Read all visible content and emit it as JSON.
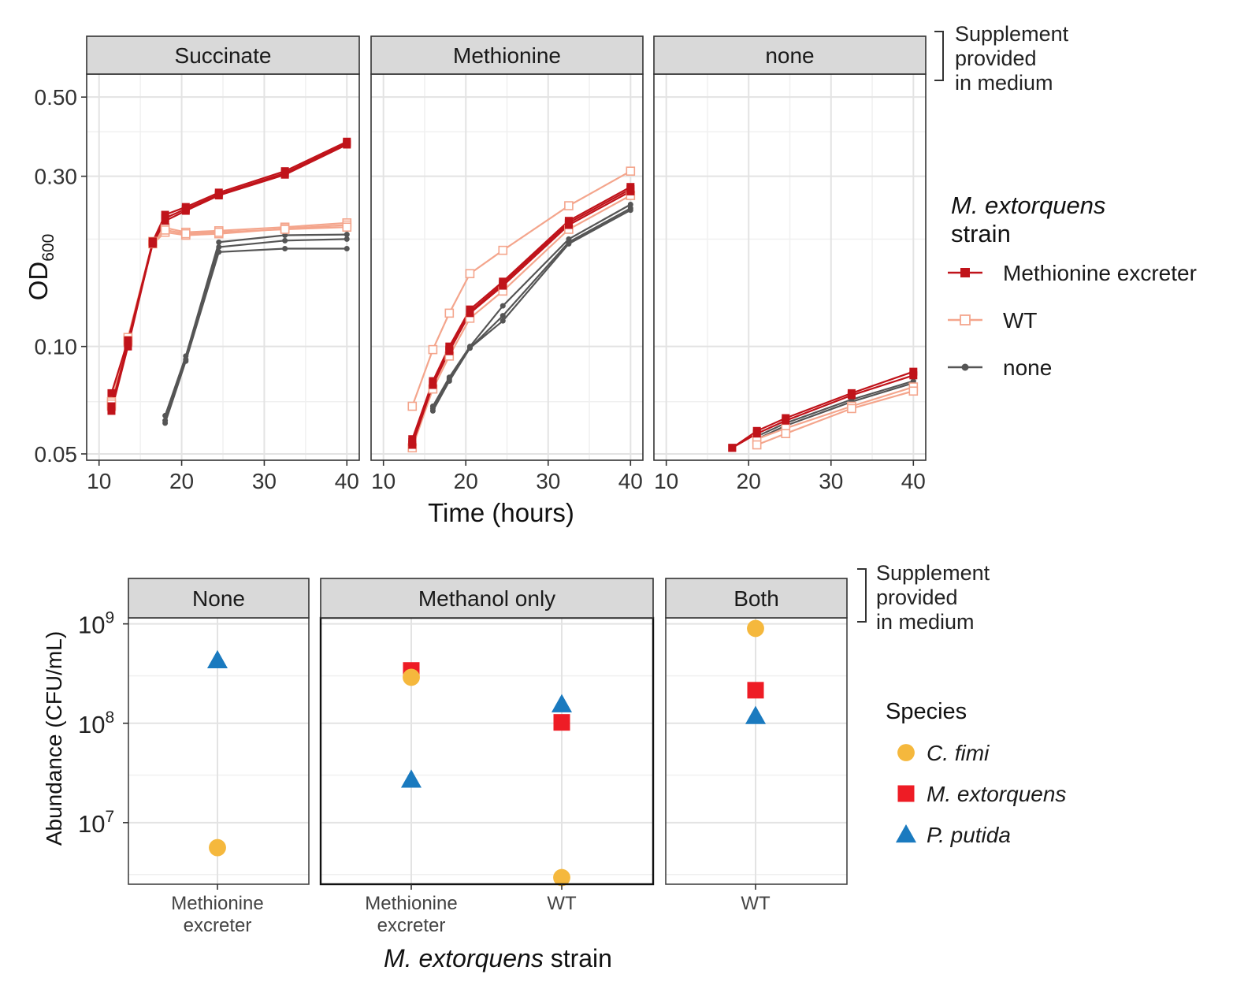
{
  "chart_data": [
    {
      "type": "line",
      "title": "",
      "xlabel": "Time (hours)",
      "ylabel_main": "OD",
      "ylabel_sub": "600",
      "yscale": "log",
      "ylim": [
        0.048,
        0.58
      ],
      "xlim": [
        8.5,
        41.5
      ],
      "x_ticks": [
        10,
        20,
        30,
        40
      ],
      "y_ticks": [
        0.05,
        0.1,
        0.3,
        0.5
      ],
      "y_tick_labels": [
        "0.05",
        "0.10",
        "0.30",
        "0.50"
      ],
      "grid": true,
      "facet_note": "Supplement provided in medium",
      "legend": {
        "position": "right",
        "title_italic": "M. extorquens",
        "title_rest": "strain",
        "entries": [
          {
            "label": "Methionine excreter",
            "color": "#c0131a",
            "marker": "square-filled"
          },
          {
            "label": "WT",
            "color": "#f4a58c",
            "marker": "square-open"
          },
          {
            "label": "none",
            "color": "#555555",
            "marker": "circle-filled"
          }
        ]
      },
      "facets": [
        {
          "label": "Succinate",
          "series": [
            {
              "strain": "Methionine excreter",
              "x": [
                11.5,
                13.5,
                16.5,
                18,
                20.5,
                24.5,
                32.5,
                40
              ],
              "y": [
                0.074,
                0.104,
                0.197,
                0.234,
                0.246,
                0.27,
                0.31,
                0.375
              ]
            },
            {
              "strain": "Methionine excreter",
              "x": [
                11.5,
                13.5,
                16.5,
                18,
                20.5,
                24.5,
                32.5,
                40
              ],
              "y": [
                0.068,
                0.102,
                0.194,
                0.225,
                0.24,
                0.265,
                0.303,
                0.368
              ]
            },
            {
              "strain": "Methionine excreter",
              "x": [
                11.5,
                13.5,
                16.5,
                18,
                20.5,
                24.5,
                32.5,
                40
              ],
              "y": [
                0.066,
                0.1,
                0.196,
                0.229,
                0.243,
                0.267,
                0.306,
                0.371
              ]
            },
            {
              "strain": "WT",
              "x": [
                11.5,
                13.5,
                16.5,
                18,
                20.5,
                24.5,
                32.5,
                40
              ],
              "y": [
                0.07,
                0.106,
                0.197,
                0.215,
                0.209,
                0.211,
                0.216,
                0.222
              ]
            },
            {
              "strain": "WT",
              "x": [
                11.5,
                13.5,
                16.5,
                18,
                20.5,
                24.5,
                32.5,
                40
              ],
              "y": [
                0.068,
                0.103,
                0.194,
                0.209,
                0.205,
                0.207,
                0.214,
                0.219
              ]
            },
            {
              "strain": "WT",
              "x": [
                11.5,
                13.5,
                16.5,
                18,
                20.5,
                24.5,
                32.5,
                40
              ],
              "y": [
                0.069,
                0.104,
                0.195,
                0.212,
                0.207,
                0.209,
                0.213,
                0.216
              ]
            },
            {
              "strain": "none",
              "x": [
                18,
                20.5,
                24.5,
                32.5,
                40
              ],
              "y": [
                0.064,
                0.094,
                0.196,
                0.205,
                0.206
              ]
            },
            {
              "strain": "none",
              "x": [
                18,
                20.5,
                24.5,
                32.5,
                40
              ],
              "y": [
                0.061,
                0.091,
                0.184,
                0.188,
                0.188
              ]
            },
            {
              "strain": "none",
              "x": [
                18,
                20.5,
                24.5,
                32.5,
                40
              ],
              "y": [
                0.062,
                0.092,
                0.19,
                0.198,
                0.2
              ]
            }
          ]
        },
        {
          "label": "Methionine",
          "series": [
            {
              "strain": "Methionine excreter",
              "x": [
                13.5,
                16,
                18,
                20.5,
                24.5,
                32.5,
                40
              ],
              "y": [
                0.055,
                0.08,
                0.1,
                0.127,
                0.152,
                0.225,
                0.28
              ]
            },
            {
              "strain": "Methionine excreter",
              "x": [
                13.5,
                16,
                18,
                20.5,
                24.5,
                32.5,
                40
              ],
              "y": [
                0.053,
                0.078,
                0.097,
                0.124,
                0.148,
                0.219,
                0.272
              ]
            },
            {
              "strain": "Methionine excreter",
              "x": [
                13.5,
                16,
                18,
                20.5,
                24.5,
                32.5,
                40
              ],
              "y": [
                0.054,
                0.079,
                0.098,
                0.125,
                0.15,
                0.222,
                0.276
              ]
            },
            {
              "strain": "WT",
              "x": [
                13.5,
                16,
                18,
                20.5,
                24.5,
                32.5,
                40
              ],
              "y": [
                0.068,
                0.098,
                0.124,
                0.16,
                0.186,
                0.248,
                0.31
              ]
            },
            {
              "strain": "WT",
              "x": [
                13.5,
                16,
                18,
                20.5,
                24.5,
                32.5,
                40
              ],
              "y": [
                0.052,
                0.076,
                0.094,
                0.12,
                0.143,
                0.213,
                0.265
              ]
            },
            {
              "strain": "none",
              "x": [
                16,
                18,
                20.5,
                24.5,
                32.5,
                40
              ],
              "y": [
                0.068,
                0.082,
                0.1,
                0.13,
                0.2,
                0.25
              ]
            },
            {
              "strain": "none",
              "x": [
                16,
                18,
                20.5,
                24.5,
                32.5,
                40
              ],
              "y": [
                0.066,
                0.08,
                0.099,
                0.122,
                0.196,
                0.244
              ]
            },
            {
              "strain": "none",
              "x": [
                16,
                18,
                20.5,
                24.5,
                32.5,
                40
              ],
              "y": [
                0.067,
                0.081,
                0.099,
                0.118,
                0.194,
                0.241
              ]
            }
          ]
        },
        {
          "label": "none",
          "series": [
            {
              "strain": "Methionine excreter",
              "x": [
                18,
                21,
                24.5,
                32.5,
                40
              ],
              "y": [
                0.052,
                0.058,
                0.063,
                0.074,
                0.085
              ]
            },
            {
              "strain": "Methionine excreter",
              "x": [
                18,
                21,
                24.5,
                32.5,
                40
              ],
              "y": [
                0.052,
                0.057,
                0.062,
                0.073,
                0.083
              ]
            },
            {
              "strain": "WT",
              "x": [
                21,
                24.5,
                32.5,
                40
              ],
              "y": [
                0.055,
                0.059,
                0.068,
                0.077
              ]
            },
            {
              "strain": "WT",
              "x": [
                21,
                24.5,
                32.5,
                40
              ],
              "y": [
                0.053,
                0.057,
                0.067,
                0.075
              ]
            },
            {
              "strain": "none",
              "x": [
                21,
                24.5,
                32.5,
                40
              ],
              "y": [
                0.056,
                0.061,
                0.071,
                0.08
              ]
            },
            {
              "strain": "none",
              "x": [
                21,
                24.5,
                32.5,
                40
              ],
              "y": [
                0.055,
                0.06,
                0.07,
                0.079
              ]
            }
          ]
        }
      ]
    },
    {
      "type": "scatter",
      "title": "",
      "xlabel_italic": "M. extorquens",
      "xlabel_rest": "strain",
      "ylabel": "Abundance (CFU/mL)",
      "yscale": "log",
      "ylim": [
        2400000,
        1150000000
      ],
      "y_ticks": [
        10000000,
        100000000,
        1000000000
      ],
      "y_tick_base": "10",
      "y_tick_exponents": [
        "7",
        "8",
        "9"
      ],
      "grid": true,
      "facet_note": "Supplement provided in medium",
      "legend": {
        "position": "right",
        "title": "Species",
        "entries": [
          {
            "label": "C. fimi",
            "color": "#f5b83d",
            "marker": "circle"
          },
          {
            "label": "M. extorquens",
            "color": "#ee1c25",
            "marker": "square"
          },
          {
            "label": "P. putida",
            "color": "#1a7abf",
            "marker": "triangle"
          }
        ]
      },
      "facets": [
        {
          "label": "None",
          "categories": [
            "Methionine excreter"
          ],
          "points": [
            {
              "category": "Methionine excreter",
              "species": "P. putida",
              "value": 430000000
            },
            {
              "category": "Methionine excreter",
              "species": "C. fimi",
              "value": 5600000
            }
          ]
        },
        {
          "label": "Methanol only",
          "categories": [
            "Methionine excreter",
            "WT"
          ],
          "points": [
            {
              "category": "Methionine excreter",
              "species": "M. extorquens",
              "value": 340000000
            },
            {
              "category": "Methionine excreter",
              "species": "C. fimi",
              "value": 290000000
            },
            {
              "category": "Methionine excreter",
              "species": "P. putida",
              "value": 27000000
            },
            {
              "category": "WT",
              "species": "P. putida",
              "value": 155000000
            },
            {
              "category": "WT",
              "species": "M. extorquens",
              "value": 102000000
            },
            {
              "category": "WT",
              "species": "C. fimi",
              "value": 2800000
            }
          ]
        },
        {
          "label": "Both",
          "categories": [
            "WT"
          ],
          "points": [
            {
              "category": "WT",
              "species": "C. fimi",
              "value": 900000000
            },
            {
              "category": "WT",
              "species": "M. extorquens",
              "value": 215000000
            },
            {
              "category": "WT",
              "species": "P. putida",
              "value": 118000000
            }
          ]
        }
      ]
    }
  ]
}
